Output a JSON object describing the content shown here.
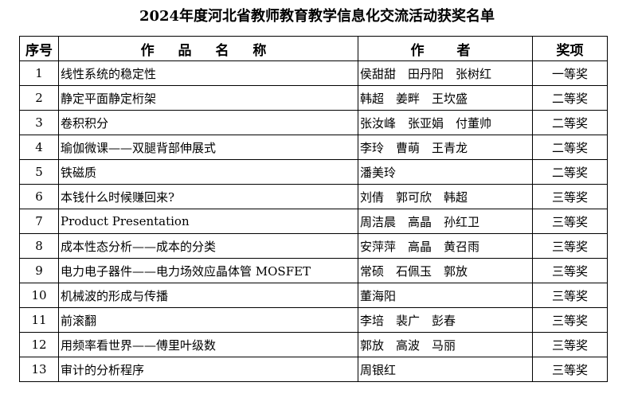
{
  "title": "2024年度河北省教师教育教学信息化交流活动获奖名单",
  "headers": [
    "序号",
    "作 品 名 称",
    "作　者",
    "奖项"
  ],
  "rows": [
    [
      "1",
      "线性系统的稳定性",
      "侯甜甜　田丹阳　张树红",
      "一等奖"
    ],
    [
      "2",
      "静定平面静定桁架",
      "韩超　姜畔　王坎盛",
      "二等奖"
    ],
    [
      "3",
      "卷积积分",
      "张汝峰　张亚娟　付董帅",
      "二等奖"
    ],
    [
      "4",
      "瑜伽微课——双腿背部伸展式",
      "李玲　曹萌　王青龙",
      "二等奖"
    ],
    [
      "5",
      "铁磁质",
      "潘美玲",
      "二等奖"
    ],
    [
      "6",
      "本钱什么时候赚回来?",
      "刘倩　郭可欣　韩超",
      "三等奖"
    ],
    [
      "7",
      "Product Presentation",
      "周洁晨　高晶　孙红卫",
      "三等奖"
    ],
    [
      "8",
      "成本性态分析——成本的分类",
      "安萍萍　高晶　黄召雨",
      "三等奖"
    ],
    [
      "9",
      "电力电子器件——电力场效应晶体管 MOSFET",
      "常硕　石佩玉　郭放",
      "三等奖"
    ],
    [
      "10",
      "机械波的形成与传播",
      "董海阳",
      "三等奖"
    ],
    [
      "11",
      "前滚翻",
      "李培　裴广　彭春",
      "三等奖"
    ],
    [
      "12",
      "用频率看世界——傅里叶级数",
      "郭放　高波　马丽",
      "三等奖"
    ],
    [
      "13",
      "审计的分析程序",
      "周银红",
      "三等奖"
    ]
  ]
}
